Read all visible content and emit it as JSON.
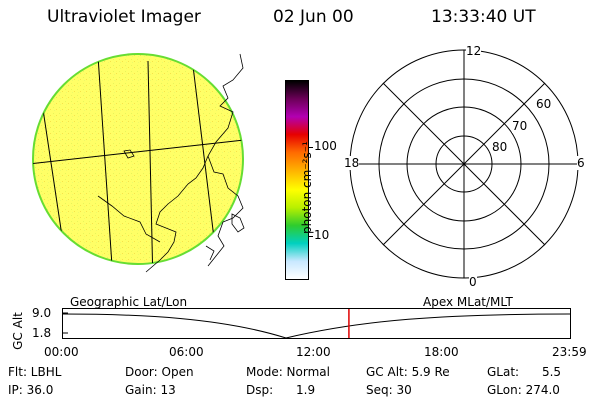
{
  "header": {
    "instrument": "Ultraviolet Imager",
    "date": "02 Jun 00",
    "time": "13:33:40 UT"
  },
  "colorbar": {
    "unit_label": "photon cm⁻²s⁻¹",
    "ticks": [
      "100",
      "10"
    ],
    "colors": [
      "#000000",
      "#6b0057",
      "#b200b2",
      "#e60000",
      "#ff6a00",
      "#ffb000",
      "#ffff00",
      "#b8f000",
      "#2ecc2e",
      "#00d0c0",
      "#c8e8ff",
      "#ffffff"
    ]
  },
  "polar_plot": {
    "mlt_labels": {
      "top": "12",
      "left": "18",
      "right": "6",
      "bottom": "0"
    },
    "lat_labels": [
      "60",
      "70",
      "80"
    ]
  },
  "timeline": {
    "left_title": "Geographic Lat/Lon",
    "right_title": "Apex MLat/MLT",
    "ylabel": "GC Alt",
    "ytick": "9.0",
    "ytick_low": "1.8",
    "xticks": [
      "00:00",
      "06:00",
      "12:00",
      "18:00",
      "23:59"
    ],
    "current_time": "13:33:40"
  },
  "info": {
    "filter": "Flt: LBHL",
    "ip": "IP: 36.0",
    "door": "Door: Open",
    "gain": "Gain: 13",
    "mode": "Mode: Normal",
    "dsp": "Dsp:      1.9",
    "gc_alt": "GC Alt: 5.9 Re",
    "seq": "Seq: 30",
    "glat": "GLat:      5.5",
    "glon": "GLon: 274.0"
  },
  "colors": {
    "earth_fill": "#ffff66",
    "earth_edge": "#66dd33",
    "time_marker": "#e00000"
  }
}
